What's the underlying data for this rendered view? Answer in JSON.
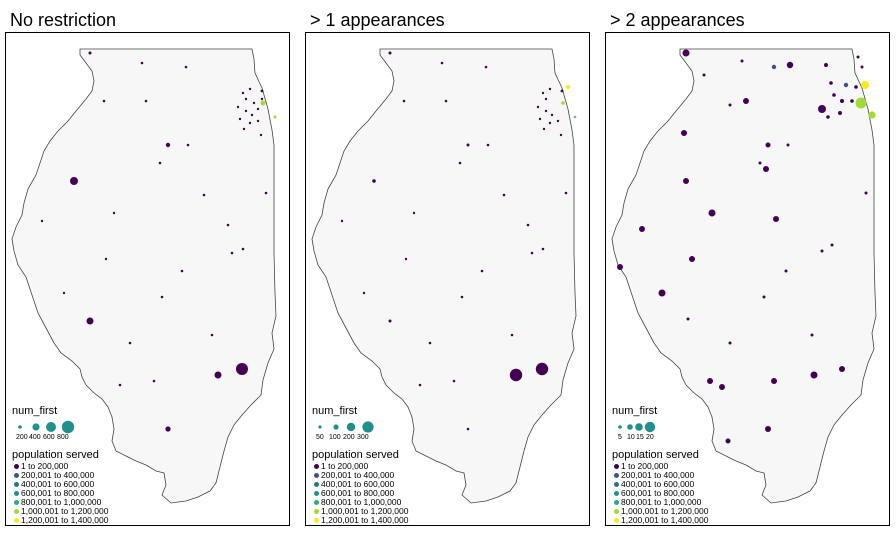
{
  "colors": {
    "background": "#ffffff",
    "state_fill": "#f7f7f7",
    "state_stroke": "#444444",
    "palette": [
      "#440154",
      "#3b528b",
      "#21908c",
      "#27ad81",
      "#5dc863",
      "#a0da39",
      "#fde725"
    ]
  },
  "panels": [
    {
      "title": "No restriction",
      "legend": {
        "size_title": "num_first",
        "size_labels": [
          "200",
          "400",
          "600",
          "800"
        ],
        "color_title": "population  served",
        "color_items": [
          "1 to 200,000",
          "200,001 to 400,000",
          "400,001 to 600,000",
          "600,001 to 800,000",
          "800,001 to 1,000,000",
          "1,000,001 to 1,200,000",
          "1,200,001 to 1,400,000"
        ]
      }
    },
    {
      "title": "> 1 appearances",
      "legend": {
        "size_title": "num_first",
        "size_labels": [
          "50",
          "100",
          "200",
          "300"
        ],
        "color_title": "population  served",
        "color_items": [
          "1 to 200,000",
          "200,001 to 400,000",
          "400,001 to 600,000",
          "600,001 to 800,000",
          "800,001 to 1,000,000",
          "1,000,001 to 1,200,000",
          "1,200,001 to 1,400,000"
        ]
      }
    },
    {
      "title": "> 2 appearances",
      "legend": {
        "size_title": "num_first",
        "size_labels": [
          "5",
          "10",
          "15",
          "20"
        ],
        "color_title": "population  served",
        "color_items": [
          "1 to 200,000",
          "200,001 to 400,000",
          "400,001 to 600,000",
          "600,001 to 800,000",
          "800,001 to 1,000,000",
          "1,000,001 to 1,200,000",
          "1,200,001 to 1,400,000"
        ]
      }
    }
  ]
}
